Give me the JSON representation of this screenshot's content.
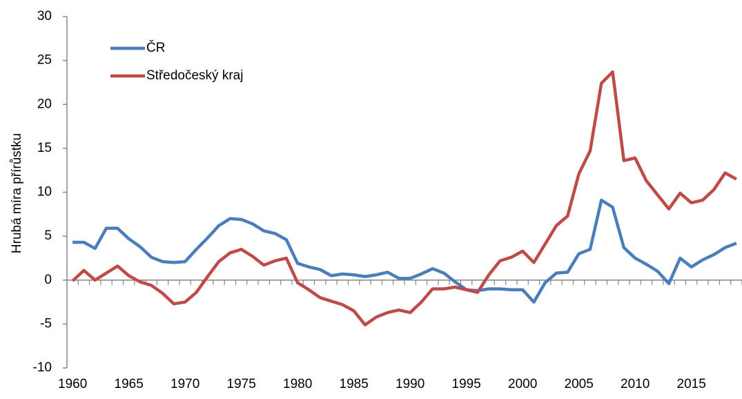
{
  "chart_data": {
    "type": "line",
    "y_label": "Hrubá míra přírůstku",
    "x": [
      1960,
      1961,
      1962,
      1963,
      1964,
      1965,
      1966,
      1967,
      1968,
      1969,
      1970,
      1971,
      1972,
      1973,
      1974,
      1975,
      1976,
      1977,
      1978,
      1979,
      1980,
      1981,
      1982,
      1983,
      1984,
      1985,
      1986,
      1987,
      1988,
      1989,
      1990,
      1991,
      1992,
      1993,
      1994,
      1995,
      1996,
      1997,
      1998,
      1999,
      2000,
      2001,
      2002,
      2003,
      2004,
      2005,
      2006,
      2007,
      2008,
      2009,
      2010,
      2011,
      2012,
      2013,
      2014,
      2015,
      2016,
      2017,
      2018,
      2019
    ],
    "series": [
      {
        "name": "ČR",
        "color": "#4a7ebb",
        "values": [
          4.3,
          4.3,
          3.6,
          5.9,
          5.9,
          4.7,
          3.8,
          2.6,
          2.1,
          2.0,
          2.1,
          3.5,
          4.8,
          6.2,
          7.0,
          6.9,
          6.4,
          5.6,
          5.3,
          4.6,
          1.9,
          1.5,
          1.2,
          0.5,
          0.7,
          0.6,
          0.4,
          0.6,
          0.9,
          0.2,
          0.2,
          0.7,
          1.3,
          0.8,
          -0.2,
          -1.1,
          -1.2,
          -1.0,
          -1.0,
          -1.1,
          -1.1,
          -2.5,
          -0.3,
          0.8,
          0.9,
          3.0,
          3.5,
          9.1,
          8.3,
          3.7,
          2.5,
          1.8,
          1.0,
          -0.4,
          2.5,
          1.5,
          2.3,
          2.9,
          3.7,
          4.2
        ]
      },
      {
        "name": "Středočeský kraj",
        "color": "#be4b48",
        "values": [
          -0.1,
          1.1,
          0.0,
          0.8,
          1.6,
          0.5,
          -0.2,
          -0.6,
          -1.5,
          -2.7,
          -2.5,
          -1.4,
          0.4,
          2.1,
          3.1,
          3.5,
          2.7,
          1.7,
          2.2,
          2.5,
          -0.3,
          -1.1,
          -2.0,
          -2.4,
          -2.8,
          -3.5,
          -5.1,
          -4.2,
          -3.7,
          -3.4,
          -3.7,
          -2.5,
          -1.0,
          -1.0,
          -0.8,
          -1.1,
          -1.4,
          0.6,
          2.2,
          2.6,
          3.3,
          2.0,
          4.1,
          6.2,
          7.3,
          12.1,
          14.7,
          22.4,
          23.7,
          13.6,
          13.9,
          11.3,
          9.7,
          8.1,
          9.9,
          8.8,
          9.1,
          10.3,
          12.2,
          11.5
        ]
      }
    ],
    "xlim": [
      1959.5,
      2019.5
    ],
    "xticks": [
      1960,
      1965,
      1970,
      1975,
      1980,
      1985,
      1990,
      1995,
      2000,
      2005,
      2010,
      2015
    ],
    "ylim": [
      -10,
      30
    ],
    "yticks": [
      -10,
      -5,
      0,
      5,
      10,
      15,
      20,
      25,
      30
    ],
    "grid": false,
    "legend": "top-left"
  }
}
